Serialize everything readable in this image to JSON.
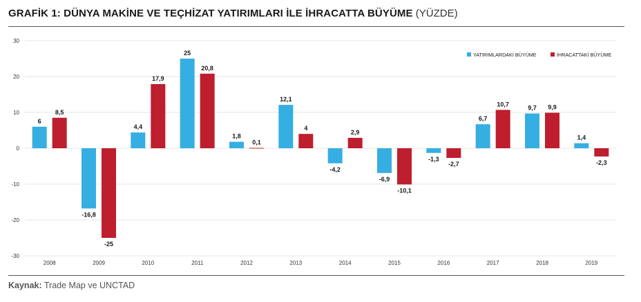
{
  "header": {
    "title": "GRAFİK 1: DÜNYA MAKİNE VE TEÇHİZAT YATIRIMLARI İLE İHRACATTA BÜYÜME",
    "subtitle": "(YÜZDE)"
  },
  "footer": {
    "source_label": "Kaynak:",
    "source_text": "Trade Map ve UNCTAD"
  },
  "colors": {
    "investment": "#35aee2",
    "export": "#be1e2d",
    "gridline": "#e6e6e6",
    "axis_text": "#333333"
  },
  "chart_data": {
    "type": "bar",
    "title": "GRAFİK 1: DÜNYA MAKİNE VE TEÇHİZAT YATIRIMLARI İLE İHRACATTA BÜYÜME",
    "subtitle": "(YÜZDE)",
    "categories": [
      "2008",
      "2009",
      "2010",
      "2011",
      "2012",
      "2013",
      "2014",
      "2015",
      "2016",
      "2017",
      "2018",
      "2019"
    ],
    "series": [
      {
        "name": "YATIRIMLARDAKİ BÜYÜME",
        "values": [
          6,
          -16.8,
          4.4,
          25,
          1.8,
          12.1,
          -4.2,
          -6.9,
          -1.3,
          6.7,
          9.7,
          1.4
        ],
        "labels": [
          "6",
          "-16,8",
          "4,4",
          "25",
          "1,8",
          "12,1",
          "-4,2",
          "-6,9",
          "-1,3",
          "6,7",
          "9,7",
          "1,4"
        ]
      },
      {
        "name": "İHRACATTAKİ BÜYÜME",
        "values": [
          8.5,
          -25,
          17.9,
          20.8,
          0.1,
          4,
          2.9,
          -10.1,
          -2.7,
          10.7,
          9.9,
          -2.3
        ],
        "labels": [
          "8,5",
          "-25",
          "17,9",
          "20,8",
          "0,1",
          "4",
          "2,9",
          "-10,1",
          "-2,7",
          "10,7",
          "9,9",
          "-2,3"
        ]
      }
    ],
    "ylim": [
      -30,
      30
    ],
    "yticks": [
      -30,
      -20,
      -10,
      0,
      10,
      20,
      30
    ],
    "grid": true,
    "legend_position": "top-right"
  }
}
